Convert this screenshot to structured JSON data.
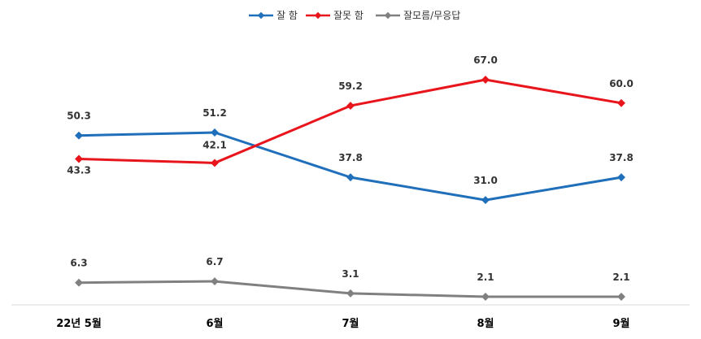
{
  "chart_data": {
    "type": "line",
    "categories": [
      "22년 5월",
      "6월",
      "7월",
      "8월",
      "9월"
    ],
    "series": [
      {
        "name": "잘 함",
        "color": "#1f6fba",
        "values": [
          50.3,
          51.2,
          37.8,
          31.0,
          37.8
        ],
        "labels": [
          "50.3",
          "51.2",
          "37.8",
          "31.0",
          "37.8"
        ]
      },
      {
        "name": "잘못 함",
        "color": "#e8161c",
        "values": [
          43.3,
          42.1,
          59.2,
          67.0,
          60.0
        ],
        "labels": [
          "43.3",
          "42.1",
          "59.2",
          "67.0",
          "60.0"
        ]
      },
      {
        "name": "잘모름/무응답",
        "color": "#808080",
        "values": [
          6.3,
          6.7,
          3.1,
          2.1,
          2.1
        ],
        "labels": [
          "6.3",
          "6.7",
          "3.1",
          "2.1",
          "2.1"
        ]
      }
    ],
    "ylim": [
      0,
      80
    ],
    "grid": false,
    "legend": "top-center",
    "title": "",
    "xlabel": "",
    "ylabel": ""
  }
}
